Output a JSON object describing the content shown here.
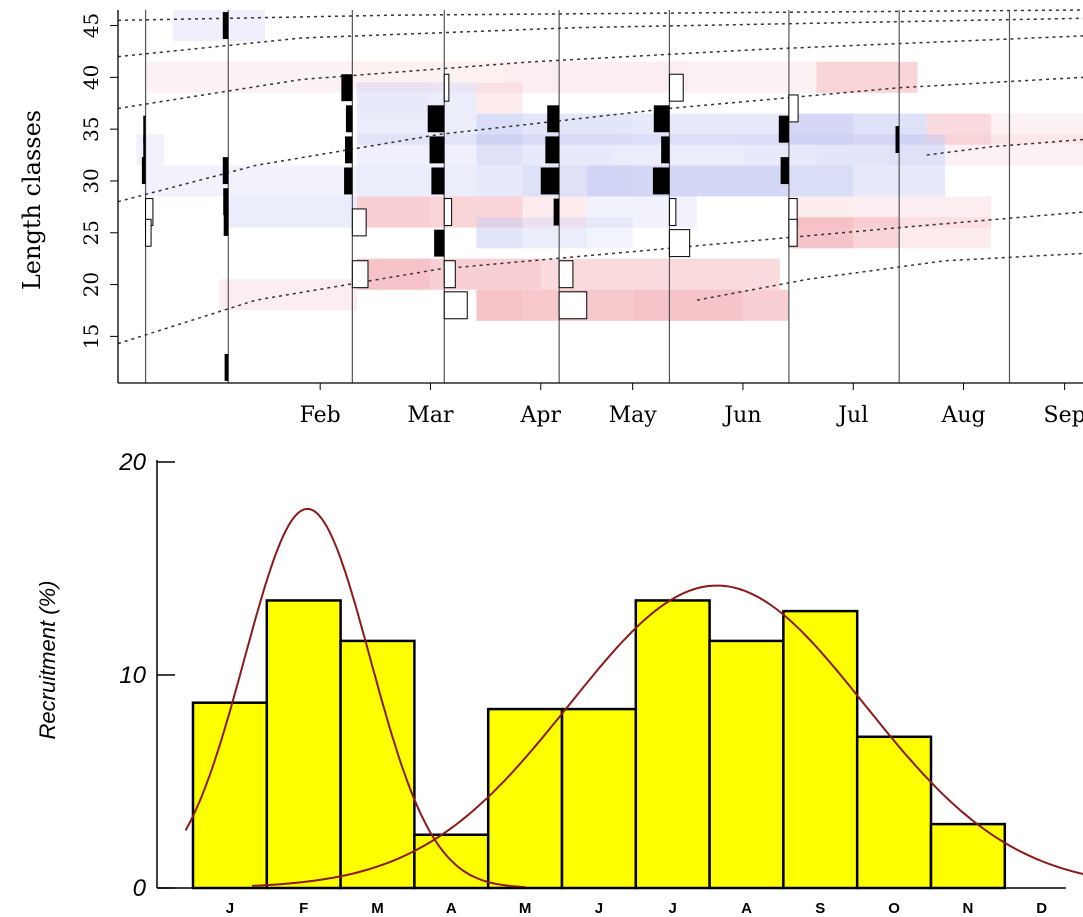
{
  "chart_data": [
    {
      "type": "heatmap",
      "ylabel": "Length classes",
      "yticks": [
        15,
        20,
        25,
        30,
        35,
        40,
        45
      ],
      "ylim": [
        10.5,
        46.5
      ],
      "xlim": [
        0,
        10.5
      ],
      "xticks": [
        {
          "label": "Feb",
          "x": 2.2
        },
        {
          "label": "Mar",
          "x": 3.4
        },
        {
          "label": "Apr",
          "x": 4.6
        },
        {
          "label": "May",
          "x": 5.6
        },
        {
          "label": "Jun",
          "x": 6.8
        },
        {
          "label": "Jul",
          "x": 8.0
        },
        {
          "label": "Aug",
          "x": 9.2
        },
        {
          "label": "Sep",
          "x": 10.3
        }
      ],
      "sample_dates": [
        0.3,
        1.2,
        2.55,
        3.55,
        4.8,
        6.0,
        7.3,
        8.5,
        9.7
      ],
      "cells": [
        {
          "x0": 0.6,
          "x1": 1.6,
          "y": 45,
          "v": -0.12
        },
        {
          "x0": 0.3,
          "x1": 2.6,
          "y": 40,
          "v": 0.05
        },
        {
          "x0": 2.6,
          "x1": 4.2,
          "y": 40,
          "v": 0.06
        },
        {
          "x0": 4.2,
          "x1": 6.2,
          "y": 40,
          "v": 0.08
        },
        {
          "x0": 6.2,
          "x1": 7.6,
          "y": 40,
          "v": 0.05
        },
        {
          "x0": 7.6,
          "x1": 8.7,
          "y": 40,
          "v": 0.3
        },
        {
          "x0": 2.6,
          "x1": 3.4,
          "y": 38,
          "v": -0.2
        },
        {
          "x0": 3.4,
          "x1": 3.9,
          "y": 38,
          "v": -0.15
        },
        {
          "x0": 3.9,
          "x1": 4.4,
          "y": 38,
          "v": 0.1
        },
        {
          "x0": 2.6,
          "x1": 3.9,
          "y": 35,
          "v": -0.15
        },
        {
          "x0": 3.9,
          "x1": 4.4,
          "y": 35,
          "v": -0.35
        },
        {
          "x0": 4.4,
          "x1": 5.6,
          "y": 35,
          "v": -0.25
        },
        {
          "x0": 5.6,
          "x1": 7.3,
          "y": 35,
          "v": -0.2
        },
        {
          "x0": 7.3,
          "x1": 8.0,
          "y": 35,
          "v": -0.4
        },
        {
          "x0": 8.0,
          "x1": 8.8,
          "y": 35,
          "v": -0.3
        },
        {
          "x0": 8.8,
          "x1": 9.5,
          "y": 35,
          "v": 0.25
        },
        {
          "x0": 9.5,
          "x1": 10.5,
          "y": 35,
          "v": 0.05
        },
        {
          "x0": 0.2,
          "x1": 0.5,
          "y": 33,
          "v": -0.1
        },
        {
          "x0": 2.6,
          "x1": 3.9,
          "y": 33,
          "v": -0.12
        },
        {
          "x0": 3.9,
          "x1": 4.4,
          "y": 33,
          "v": -0.3
        },
        {
          "x0": 4.4,
          "x1": 5.4,
          "y": 33,
          "v": -0.2
        },
        {
          "x0": 5.4,
          "x1": 6.8,
          "y": 33,
          "v": -0.15
        },
        {
          "x0": 6.8,
          "x1": 7.6,
          "y": 33,
          "v": -0.2
        },
        {
          "x0": 7.6,
          "x1": 8.4,
          "y": 33,
          "v": -0.25
        },
        {
          "x0": 8.4,
          "x1": 9.0,
          "y": 33,
          "v": -0.3
        },
        {
          "x0": 9.0,
          "x1": 10.5,
          "y": 33,
          "v": 0.05
        },
        {
          "x0": 0.3,
          "x1": 2.6,
          "y": 30,
          "v": -0.1
        },
        {
          "x0": 2.6,
          "x1": 3.9,
          "y": 30,
          "v": -0.15
        },
        {
          "x0": 3.9,
          "x1": 4.4,
          "y": 30,
          "v": -0.2
        },
        {
          "x0": 4.4,
          "x1": 5.1,
          "y": 30,
          "v": -0.3
        },
        {
          "x0": 5.1,
          "x1": 5.6,
          "y": 30,
          "v": -0.45
        },
        {
          "x0": 5.6,
          "x1": 7.3,
          "y": 30,
          "v": -0.4
        },
        {
          "x0": 7.3,
          "x1": 8.0,
          "y": 30,
          "v": -0.35
        },
        {
          "x0": 8.0,
          "x1": 9.0,
          "y": 30,
          "v": -0.2
        },
        {
          "x0": 1.2,
          "x1": 2.6,
          "y": 27,
          "v": -0.15
        },
        {
          "x0": 2.6,
          "x1": 3.4,
          "y": 27,
          "v": 0.35
        },
        {
          "x0": 3.4,
          "x1": 3.9,
          "y": 27,
          "v": 0.3
        },
        {
          "x0": 3.9,
          "x1": 4.4,
          "y": 27,
          "v": 0.3
        },
        {
          "x0": 4.4,
          "x1": 5.1,
          "y": 27,
          "v": 0.1
        },
        {
          "x0": 5.1,
          "x1": 6.3,
          "y": 27,
          "v": -0.1
        },
        {
          "x0": 7.3,
          "x1": 8.0,
          "y": 27,
          "v": 0.1
        },
        {
          "x0": 8.0,
          "x1": 9.5,
          "y": 27,
          "v": 0.08
        },
        {
          "x0": 3.9,
          "x1": 4.4,
          "y": 25,
          "v": -0.25
        },
        {
          "x0": 4.4,
          "x1": 5.1,
          "y": 25,
          "v": -0.15
        },
        {
          "x0": 5.1,
          "x1": 5.6,
          "y": 25,
          "v": -0.08
        },
        {
          "x0": 7.3,
          "x1": 8.0,
          "y": 25,
          "v": 0.45
        },
        {
          "x0": 8.0,
          "x1": 8.5,
          "y": 25,
          "v": 0.3
        },
        {
          "x0": 8.5,
          "x1": 9.5,
          "y": 25,
          "v": 0.1
        },
        {
          "x0": 2.6,
          "x1": 3.4,
          "y": 21,
          "v": 0.45
        },
        {
          "x0": 3.4,
          "x1": 4.6,
          "y": 21,
          "v": 0.35
        },
        {
          "x0": 4.6,
          "x1": 7.2,
          "y": 21,
          "v": 0.25
        },
        {
          "x0": 1.1,
          "x1": 2.6,
          "y": 19,
          "v": 0.08
        },
        {
          "x0": 3.9,
          "x1": 4.4,
          "y": 18,
          "v": 0.45
        },
        {
          "x0": 4.4,
          "x1": 5.6,
          "y": 18,
          "v": 0.4
        },
        {
          "x0": 5.6,
          "x1": 6.8,
          "y": 18,
          "v": 0.45
        },
        {
          "x0": 6.8,
          "x1": 7.3,
          "y": 18,
          "v": 0.35
        }
      ],
      "bars": [
        {
          "x": 0.3,
          "y": 35,
          "v": 0.25
        },
        {
          "x": 0.3,
          "y": 33,
          "v": 0.25
        },
        {
          "x": 0.3,
          "y": 31,
          "v": 0.4
        },
        {
          "x": 0.3,
          "y": 27,
          "v": -0.8
        },
        {
          "x": 0.3,
          "y": 25,
          "v": -0.6
        },
        {
          "x": 1.2,
          "y": 45,
          "v": 0.6
        },
        {
          "x": 1.2,
          "y": 31,
          "v": 0.6
        },
        {
          "x": 1.2,
          "y": 28,
          "v": 0.55
        },
        {
          "x": 1.2,
          "y": 26,
          "v": 0.5
        },
        {
          "x": 1.2,
          "y": 12,
          "v": 0.4
        },
        {
          "x": 2.55,
          "y": 39,
          "v": 1.2
        },
        {
          "x": 2.55,
          "y": 36,
          "v": 0.7
        },
        {
          "x": 2.55,
          "y": 33,
          "v": 0.8
        },
        {
          "x": 2.55,
          "y": 30,
          "v": 0.9
        },
        {
          "x": 2.55,
          "y": 26,
          "v": -1.5
        },
        {
          "x": 2.55,
          "y": 21,
          "v": -1.7
        },
        {
          "x": 3.55,
          "y": 36,
          "v": 1.8
        },
        {
          "x": 3.55,
          "y": 33,
          "v": 1.6
        },
        {
          "x": 3.55,
          "y": 30,
          "v": 1.4
        },
        {
          "x": 3.55,
          "y": 24,
          "v": 1.1
        },
        {
          "x": 3.55,
          "y": 27,
          "v": -0.8
        },
        {
          "x": 3.55,
          "y": 21,
          "v": -1.2
        },
        {
          "x": 3.55,
          "y": 18,
          "v": -2.5
        },
        {
          "x": 3.55,
          "y": 39,
          "v": -0.5
        },
        {
          "x": 4.8,
          "y": 36,
          "v": 1.3
        },
        {
          "x": 4.8,
          "y": 33,
          "v": 1.5
        },
        {
          "x": 4.8,
          "y": 30,
          "v": 2.0
        },
        {
          "x": 4.8,
          "y": 27,
          "v": 0.6
        },
        {
          "x": 4.8,
          "y": 21,
          "v": -1.5
        },
        {
          "x": 4.8,
          "y": 18,
          "v": -3.0
        },
        {
          "x": 6.0,
          "y": 36,
          "v": 1.7
        },
        {
          "x": 6.0,
          "y": 33,
          "v": 0.9
        },
        {
          "x": 6.0,
          "y": 30,
          "v": 1.8
        },
        {
          "x": 6.0,
          "y": 39,
          "v": -1.5
        },
        {
          "x": 6.0,
          "y": 27,
          "v": -0.7
        },
        {
          "x": 6.0,
          "y": 24,
          "v": -2.2
        },
        {
          "x": 7.3,
          "y": 35,
          "v": 1.1
        },
        {
          "x": 7.3,
          "y": 31,
          "v": 0.9
        },
        {
          "x": 7.3,
          "y": 37,
          "v": -1.0
        },
        {
          "x": 7.3,
          "y": 27,
          "v": -0.9
        },
        {
          "x": 7.3,
          "y": 25,
          "v": -0.9
        },
        {
          "x": 8.5,
          "y": 34,
          "v": 0.4
        }
      ],
      "growth_curves": [
        [
          [
            0,
            28
          ],
          [
            1.5,
            31.5
          ],
          [
            3.5,
            34.5
          ],
          [
            6,
            37
          ],
          [
            8.5,
            39
          ],
          [
            10.5,
            40
          ]
        ],
        [
          [
            0,
            14.3
          ],
          [
            1.5,
            18.5
          ],
          [
            3.5,
            21.5
          ],
          [
            6,
            23.5
          ],
          [
            8.5,
            25.5
          ],
          [
            10.5,
            27
          ]
        ],
        [
          [
            0,
            37
          ],
          [
            2,
            39.8
          ],
          [
            4.5,
            41.5
          ],
          [
            7,
            42.7
          ],
          [
            10.5,
            44
          ]
        ],
        [
          [
            0,
            42
          ],
          [
            2,
            43.8
          ],
          [
            5,
            44.8
          ],
          [
            10.5,
            45.7
          ]
        ],
        [
          [
            0,
            45.5
          ],
          [
            3,
            46
          ],
          [
            10.5,
            46.5
          ]
        ],
        [
          [
            6.3,
            18.5
          ],
          [
            7.5,
            20.5
          ],
          [
            9,
            22.3
          ],
          [
            10.5,
            23
          ]
        ]
      ],
      "growth_curve_tail": [
        [
          8.8,
          32.5
        ],
        [
          9.5,
          33.3
        ],
        [
          10.5,
          34
        ]
      ]
    },
    {
      "type": "bar",
      "ylabel": "Recruitment (%)",
      "yticks": [
        0,
        10,
        20
      ],
      "ylim": [
        0,
        20
      ],
      "categories": [
        "J",
        "F",
        "M",
        "A",
        "M",
        "J",
        "J",
        "A",
        "S",
        "O",
        "N",
        "D"
      ],
      "values": [
        8.7,
        13.5,
        11.6,
        2.5,
        8.4,
        8.4,
        13.5,
        11.6,
        13.0,
        7.1,
        3.0,
        0
      ],
      "curves": [
        {
          "mean": 1.55,
          "sd": 0.85,
          "peak": 17.8,
          "x0": -0.1,
          "x1": 4.5
        },
        {
          "mean": 7.1,
          "sd": 2.0,
          "peak": 14.2,
          "x0": 0.8,
          "x1": 12.5
        }
      ]
    }
  ],
  "colors": {
    "bar_fill": "#ffff00",
    "bar_stroke": "#000000",
    "curve": "#8b1a1a",
    "positive_cell": "#f4b6bc",
    "negative_cell": "#c7cbf2",
    "growth_curve": "#333333"
  }
}
